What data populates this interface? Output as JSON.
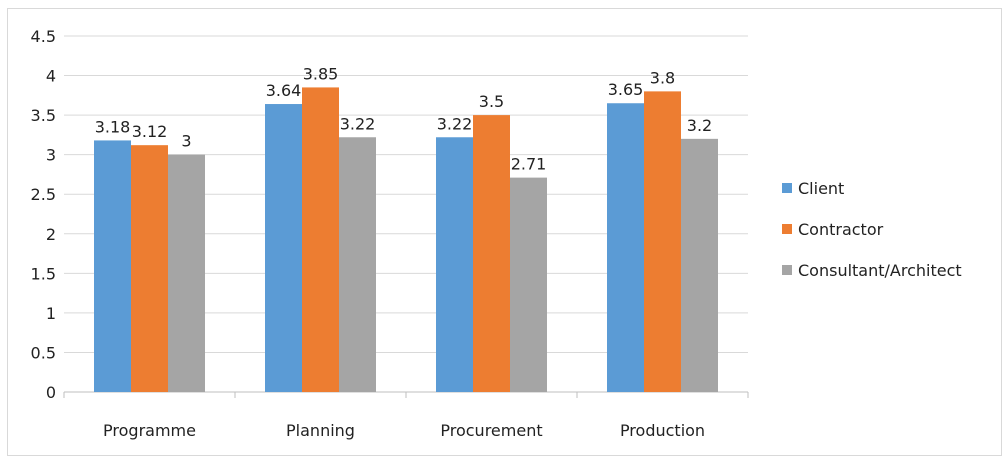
{
  "chart_data": {
    "type": "bar",
    "categories": [
      "Programme",
      "Planning",
      "Procurement",
      "Production"
    ],
    "series": [
      {
        "name": "Client",
        "values": [
          3.18,
          3.64,
          3.22,
          3.65
        ],
        "color": "#5b9bd5"
      },
      {
        "name": "Contractor",
        "values": [
          3.12,
          3.85,
          3.5,
          3.8
        ],
        "color": "#ed7d31"
      },
      {
        "name": "Consultant/Architect",
        "values": [
          3,
          3.22,
          2.71,
          3.2
        ],
        "color": "#a5a5a5"
      }
    ],
    "data_labels": [
      [
        "3.18",
        "3.64",
        "3.22",
        "3.65"
      ],
      [
        "3.12",
        "3.85",
        "3.5",
        "3.8"
      ],
      [
        "3",
        "3.22",
        "2.71",
        "3.2"
      ]
    ],
    "y_ticks": [
      "0",
      "0.5",
      "1",
      "1.5",
      "2",
      "2.5",
      "3",
      "3.5",
      "4",
      "4.5"
    ],
    "ylim": [
      0,
      4.5
    ],
    "grid": true,
    "legend_position": "right",
    "title": "",
    "xlabel": "",
    "ylabel": ""
  }
}
